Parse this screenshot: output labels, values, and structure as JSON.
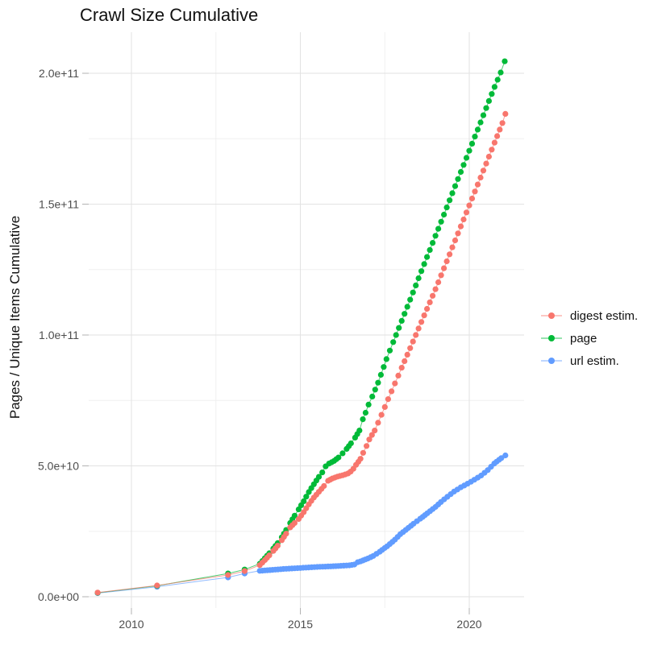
{
  "title": "Crawl Size Cumulative",
  "y_axis": {
    "label": "Pages / Unique Items Cumulative",
    "ticks": [
      "0.0e+00",
      "5.0e+10",
      "1.0e+11",
      "1.5e+11",
      "2.0e+11"
    ]
  },
  "x_axis": {
    "ticks": [
      "2010",
      "2015",
      "2020"
    ]
  },
  "legend": [
    {
      "label": "digest estim.",
      "color": "#F8766D"
    },
    {
      "label": "page",
      "color": "#00BA38"
    },
    {
      "label": "url estim.",
      "color": "#619CFF"
    }
  ],
  "colors": {
    "grid_major": "#e2e2e2",
    "grid_minor": "#f0f0f0",
    "tick_mark": "#b3b3b3",
    "tick_text": "#4d4d4d"
  },
  "chart_data": {
    "type": "scatter",
    "title": "Crawl Size Cumulative",
    "xlabel": "",
    "ylabel": "Pages / Unique Items Cumulative",
    "xlim": [
      2008.73,
      2021.62
    ],
    "ylim": [
      -4300000000.0,
      215700000000.0
    ],
    "x_ticks": [
      2010,
      2015,
      2020
    ],
    "y_ticks": [
      0,
      50000000000.0,
      100000000000.0,
      150000000000.0,
      200000000000.0
    ],
    "grid": true,
    "legend_position": "right",
    "value_unit": 1000000000.0,
    "dots_monthly_from_year": 2013.5,
    "dot_interval_years": 0.0833,
    "series": [
      {
        "name": "digest estim.",
        "color": "#F8766D",
        "points_year_billions": [
          [
            2009.0,
            1.6
          ],
          [
            2010.76,
            4.3
          ],
          [
            2012.86,
            8.3
          ],
          [
            2013.35,
            9.8
          ],
          [
            2013.8,
            12.1
          ],
          [
            2013.95,
            14.0
          ],
          [
            2014.08,
            15.8
          ],
          [
            2014.2,
            17.5
          ],
          [
            2014.33,
            19.5
          ],
          [
            2014.45,
            21.6
          ],
          [
            2014.58,
            24.1
          ],
          [
            2014.7,
            26.5
          ],
          [
            2014.83,
            28.2
          ],
          [
            2014.95,
            29.7
          ],
          [
            2015.1,
            32.3
          ],
          [
            2015.25,
            35.3
          ],
          [
            2015.4,
            37.9
          ],
          [
            2015.55,
            40.1
          ],
          [
            2015.7,
            42.3
          ],
          [
            2015.82,
            44.3
          ],
          [
            2015.95,
            45.2
          ],
          [
            2016.1,
            45.9
          ],
          [
            2016.25,
            46.4
          ],
          [
            2016.41,
            47.1
          ],
          [
            2016.49,
            47.8
          ],
          [
            2016.57,
            48.9
          ],
          [
            2016.65,
            50.4
          ],
          [
            2016.78,
            52.7
          ],
          [
            2016.86,
            55.0
          ],
          [
            2016.96,
            57.6
          ],
          [
            2017.04,
            60.1
          ],
          [
            2017.2,
            63.5
          ],
          [
            2017.4,
            69.5
          ],
          [
            2017.6,
            75.5
          ],
          [
            2017.8,
            81.5
          ],
          [
            2018.0,
            87.5
          ],
          [
            2018.25,
            95.0
          ],
          [
            2018.5,
            102.5
          ],
          [
            2018.75,
            110.0
          ],
          [
            2019.0,
            117.5
          ],
          [
            2019.25,
            125.5
          ],
          [
            2019.5,
            133.5
          ],
          [
            2019.75,
            141.5
          ],
          [
            2020.0,
            149.5
          ],
          [
            2020.25,
            157.5
          ],
          [
            2020.5,
            165.5
          ],
          [
            2020.75,
            173.5
          ],
          [
            2020.98,
            181.0
          ],
          [
            2021.07,
            184.5
          ]
        ]
      },
      {
        "name": "page",
        "color": "#00BA38",
        "points_year_billions": [
          [
            2009.0,
            1.5
          ],
          [
            2010.76,
            4.2
          ],
          [
            2012.86,
            8.9
          ],
          [
            2013.35,
            10.4
          ],
          [
            2013.8,
            12.6
          ],
          [
            2013.95,
            14.7
          ],
          [
            2014.08,
            16.6
          ],
          [
            2014.2,
            18.4
          ],
          [
            2014.33,
            20.5
          ],
          [
            2014.45,
            22.7
          ],
          [
            2014.58,
            25.5
          ],
          [
            2014.7,
            28.2
          ],
          [
            2014.83,
            31.0
          ],
          [
            2014.95,
            33.4
          ],
          [
            2015.1,
            36.5
          ],
          [
            2015.25,
            40.0
          ],
          [
            2015.4,
            43.0
          ],
          [
            2015.55,
            45.8
          ],
          [
            2015.65,
            47.5
          ],
          [
            2015.75,
            49.8
          ],
          [
            2015.85,
            50.9
          ],
          [
            2016.0,
            51.9
          ],
          [
            2016.13,
            53.2
          ],
          [
            2016.25,
            54.8
          ],
          [
            2016.37,
            56.5
          ],
          [
            2016.5,
            58.6
          ],
          [
            2016.62,
            60.8
          ],
          [
            2016.75,
            63.5
          ],
          [
            2016.85,
            67.8
          ],
          [
            2016.93,
            70.3
          ],
          [
            2017.02,
            73.4
          ],
          [
            2017.13,
            76.5
          ],
          [
            2017.3,
            81.8
          ],
          [
            2017.55,
            90.8
          ],
          [
            2017.75,
            97.3
          ],
          [
            2018.0,
            105.4
          ],
          [
            2018.25,
            113.5
          ],
          [
            2018.5,
            121.7
          ],
          [
            2018.75,
            129.8
          ],
          [
            2019.0,
            137.9
          ],
          [
            2019.25,
            146.0
          ],
          [
            2019.5,
            154.2
          ],
          [
            2019.75,
            162.3
          ],
          [
            2020.0,
            170.4
          ],
          [
            2020.25,
            178.5
          ],
          [
            2020.5,
            186.7
          ],
          [
            2020.75,
            194.8
          ],
          [
            2020.93,
            200.3
          ],
          [
            2021.05,
            204.6
          ]
        ]
      },
      {
        "name": "url estim.",
        "color": "#619CFF",
        "points_year_billions": [
          [
            2009.0,
            1.4
          ],
          [
            2010.76,
            3.8
          ],
          [
            2012.86,
            7.4
          ],
          [
            2013.35,
            8.9
          ],
          [
            2013.8,
            9.9
          ],
          [
            2014.1,
            10.2
          ],
          [
            2014.5,
            10.6
          ],
          [
            2015.0,
            11.0
          ],
          [
            2015.5,
            11.4
          ],
          [
            2015.9,
            11.6
          ],
          [
            2016.2,
            11.8
          ],
          [
            2016.45,
            12.0
          ],
          [
            2016.6,
            12.3
          ],
          [
            2016.7,
            13.2
          ],
          [
            2016.78,
            13.5
          ],
          [
            2017.0,
            14.6
          ],
          [
            2017.16,
            15.6
          ],
          [
            2017.35,
            17.2
          ],
          [
            2017.57,
            19.3
          ],
          [
            2017.8,
            21.8
          ],
          [
            2017.96,
            23.9
          ],
          [
            2018.12,
            25.5
          ],
          [
            2018.35,
            27.9
          ],
          [
            2018.55,
            29.8
          ],
          [
            2018.76,
            31.9
          ],
          [
            2019.0,
            34.3
          ],
          [
            2019.16,
            36.2
          ],
          [
            2019.35,
            38.2
          ],
          [
            2019.55,
            40.2
          ],
          [
            2019.75,
            41.8
          ],
          [
            2019.95,
            43.2
          ],
          [
            2020.15,
            44.7
          ],
          [
            2020.35,
            46.3
          ],
          [
            2020.55,
            48.4
          ],
          [
            2020.74,
            50.9
          ],
          [
            2020.95,
            53.0
          ],
          [
            2021.07,
            54.0
          ]
        ]
      }
    ]
  }
}
